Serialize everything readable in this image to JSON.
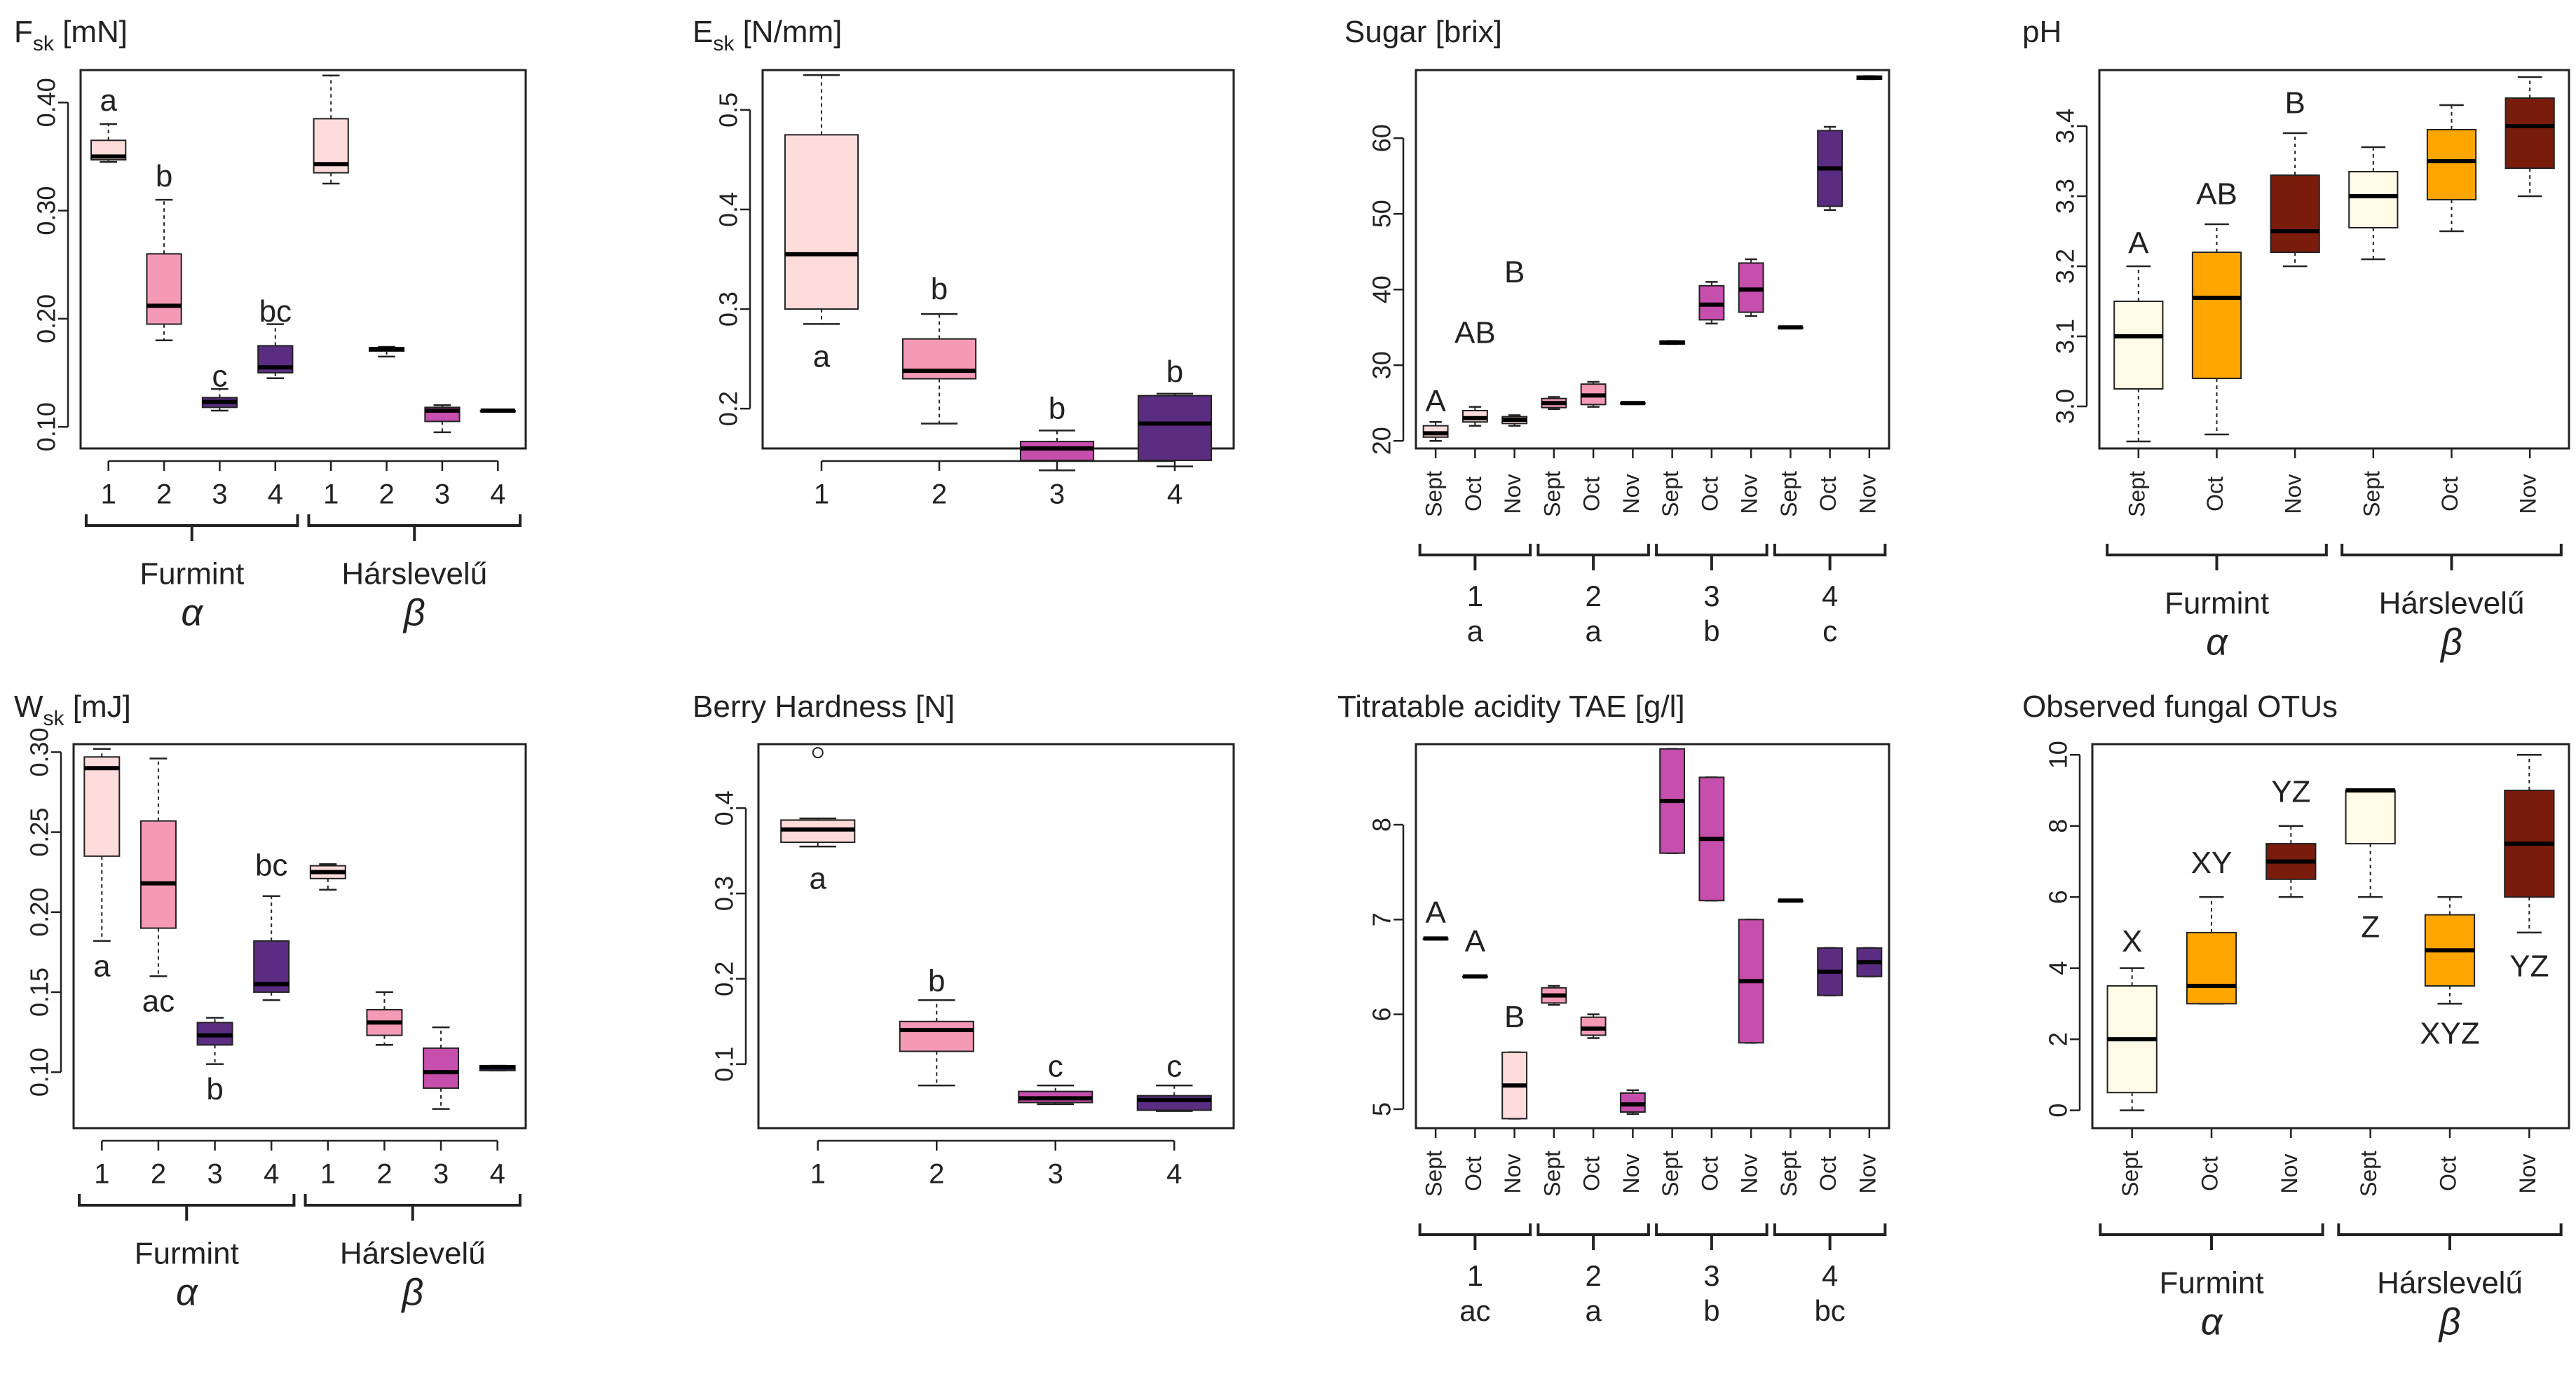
{
  "colors": {
    "pale": "#fffbe6",
    "lightpink": "#ffdcdc",
    "pink": "#f59ab6",
    "magenta": "#c64eac",
    "purple": "#5a2d82",
    "orange": "#ffa500",
    "brown": "#7a1c0c",
    "ink": "#222222"
  },
  "group_labels": {
    "furmint": "Furmint",
    "harslevelu": "Hárslevelű",
    "alpha": "α",
    "beta": "β"
  },
  "chart_data": [
    {
      "id": "fsk",
      "type": "boxplot",
      "title": "F",
      "title_sub": "sk",
      "title_unit": " [mN]",
      "ylim": [
        0.08,
        0.43
      ],
      "yticks": [
        0.1,
        0.2,
        0.3,
        0.4
      ],
      "ytick_labels": [
        "0.10",
        "0.20",
        "0.30",
        "0.40"
      ],
      "categories": [
        "1",
        "2",
        "3",
        "4",
        "1",
        "2",
        "3",
        "4"
      ],
      "boxes": [
        {
          "min": 0.345,
          "q1": 0.347,
          "median": 0.35,
          "q3": 0.365,
          "max": 0.38,
          "color": "lightpink"
        },
        {
          "min": 0.18,
          "q1": 0.195,
          "median": 0.212,
          "q3": 0.26,
          "max": 0.31,
          "color": "pink"
        },
        {
          "min": 0.115,
          "q1": 0.118,
          "median": 0.123,
          "q3": 0.127,
          "max": 0.135,
          "color": "purple"
        },
        {
          "min": 0.145,
          "q1": 0.15,
          "median": 0.155,
          "q3": 0.175,
          "max": 0.195,
          "color": "purple"
        },
        {
          "min": 0.325,
          "q1": 0.335,
          "median": 0.343,
          "q3": 0.385,
          "max": 0.425,
          "color": "lightpink"
        },
        {
          "min": 0.165,
          "q1": 0.17,
          "median": 0.172,
          "q3": 0.173,
          "max": 0.174,
          "color": "pink"
        },
        {
          "min": 0.095,
          "q1": 0.105,
          "median": 0.115,
          "q3": 0.118,
          "max": 0.12,
          "color": "magenta"
        },
        {
          "min": 0.114,
          "q1": 0.114,
          "median": 0.115,
          "q3": 0.115,
          "max": 0.116,
          "color": "purple"
        }
      ],
      "annotations": [
        {
          "text": "a",
          "x": 1,
          "y": 0.4
        },
        {
          "text": "b",
          "x": 2,
          "y": 0.33
        },
        {
          "text": "c",
          "x": 3,
          "y": 0.145
        },
        {
          "text": "bc",
          "x": 4,
          "y": 0.205
        }
      ],
      "groups": [
        {
          "label": "Furmint",
          "greek": "α",
          "from": 1,
          "to": 4
        },
        {
          "label": "Hárslevelű",
          "greek": "β",
          "from": 5,
          "to": 8
        }
      ]
    },
    {
      "id": "esk",
      "type": "boxplot",
      "title": "E",
      "title_sub": "sk",
      "title_unit": " [N/mm]",
      "ylim": [
        0.16,
        0.54
      ],
      "yticks": [
        0.2,
        0.3,
        0.4,
        0.5
      ],
      "ytick_labels": [
        "0.2",
        "0.3",
        "0.4",
        "0.5"
      ],
      "categories": [
        "1",
        "2",
        "3",
        "4"
      ],
      "boxes": [
        {
          "min": 0.285,
          "q1": 0.3,
          "median": 0.355,
          "q3": 0.475,
          "max": 0.535,
          "color": "lightpink"
        },
        {
          "min": 0.185,
          "q1": 0.23,
          "median": 0.238,
          "q3": 0.27,
          "max": 0.295,
          "color": "pink"
        },
        {
          "min": 0.138,
          "q1": 0.148,
          "median": 0.16,
          "q3": 0.167,
          "max": 0.178,
          "color": "magenta"
        },
        {
          "min": 0.142,
          "q1": 0.148,
          "median": 0.185,
          "q3": 0.213,
          "max": 0.215,
          "color": "purple"
        }
      ],
      "annotations": [
        {
          "text": "a",
          "x": 1,
          "y": 0.25
        },
        {
          "text": "b",
          "x": 2,
          "y": 0.318
        },
        {
          "text": "b",
          "x": 3,
          "y": 0.198
        },
        {
          "text": "b",
          "x": 4,
          "y": 0.235
        }
      ]
    },
    {
      "id": "sugar",
      "type": "boxplot",
      "title": "Sugar [brix]",
      "ylim": [
        19,
        69
      ],
      "yticks": [
        20,
        30,
        40,
        50,
        60
      ],
      "ytick_labels": [
        "20",
        "30",
        "40",
        "50",
        "60"
      ],
      "categories": [
        "Sept",
        "Oct",
        "Nov",
        "Sept",
        "Oct",
        "Nov",
        "Sept",
        "Oct",
        "Nov",
        "Sept",
        "Oct",
        "Nov"
      ],
      "boxes": [
        {
          "min": 20,
          "q1": 20.5,
          "median": 21,
          "q3": 22,
          "max": 22.5,
          "color": "lightpink"
        },
        {
          "min": 22,
          "q1": 22.5,
          "median": 23,
          "q3": 24,
          "max": 24.5,
          "color": "lightpink"
        },
        {
          "min": 22,
          "q1": 22.3,
          "median": 22.8,
          "q3": 23.2,
          "max": 23.4,
          "color": "lightpink"
        },
        {
          "min": 24.2,
          "q1": 24.4,
          "median": 25,
          "q3": 25.6,
          "max": 25.8,
          "color": "pink"
        },
        {
          "min": 24.5,
          "q1": 24.8,
          "median": 26,
          "q3": 27.5,
          "max": 27.8,
          "color": "pink"
        },
        {
          "min": 25,
          "q1": 25,
          "median": 25,
          "q3": 25,
          "max": 25,
          "color": "pink"
        },
        {
          "min": 32.8,
          "q1": 32.8,
          "median": 33,
          "q3": 33.2,
          "max": 33.2,
          "color": "magenta"
        },
        {
          "min": 35.5,
          "q1": 36,
          "median": 38,
          "q3": 40.5,
          "max": 41,
          "color": "magenta"
        },
        {
          "min": 36.5,
          "q1": 37,
          "median": 40,
          "q3": 43.5,
          "max": 44,
          "color": "magenta"
        },
        {
          "min": 35,
          "q1": 35,
          "median": 35,
          "q3": 35,
          "max": 35,
          "color": "purple"
        },
        {
          "min": 50.5,
          "q1": 51,
          "median": 56,
          "q3": 61,
          "max": 61.5,
          "color": "purple"
        },
        {
          "min": 67.8,
          "q1": 67.8,
          "median": 68,
          "q3": 68.2,
          "max": 68.2,
          "color": "purple"
        }
      ],
      "annotations": [
        {
          "text": "A",
          "x": 1,
          "y": 25
        },
        {
          "text": "AB",
          "x": 2,
          "y": 34
        },
        {
          "text": "B",
          "x": 3,
          "y": 42
        }
      ],
      "groups": [
        {
          "label": "1",
          "sub": "a",
          "from": 1,
          "to": 3
        },
        {
          "label": "2",
          "sub": "a",
          "from": 4,
          "to": 6
        },
        {
          "label": "3",
          "sub": "b",
          "from": 7,
          "to": 9
        },
        {
          "label": "4",
          "sub": "c",
          "from": 10,
          "to": 12
        }
      ]
    },
    {
      "id": "ph",
      "type": "boxplot",
      "title": "pH",
      "ylim": [
        2.94,
        3.48
      ],
      "yticks": [
        3.0,
        3.1,
        3.2,
        3.3,
        3.4
      ],
      "ytick_labels": [
        "3.0",
        "3.1",
        "3.2",
        "3.3",
        "3.4"
      ],
      "categories": [
        "Sept",
        "Oct",
        "Nov",
        "Sept",
        "Oct",
        "Nov"
      ],
      "boxes": [
        {
          "min": 2.95,
          "q1": 3.025,
          "median": 3.1,
          "q3": 3.15,
          "max": 3.2,
          "color": "pale"
        },
        {
          "min": 2.96,
          "q1": 3.04,
          "median": 3.155,
          "q3": 3.22,
          "max": 3.26,
          "color": "orange"
        },
        {
          "min": 3.2,
          "q1": 3.22,
          "median": 3.25,
          "q3": 3.33,
          "max": 3.39,
          "color": "brown"
        },
        {
          "min": 3.21,
          "q1": 3.255,
          "median": 3.3,
          "q3": 3.335,
          "max": 3.37,
          "color": "pale"
        },
        {
          "min": 3.25,
          "q1": 3.295,
          "median": 3.35,
          "q3": 3.395,
          "max": 3.43,
          "color": "orange"
        },
        {
          "min": 3.3,
          "q1": 3.34,
          "median": 3.4,
          "q3": 3.44,
          "max": 3.47,
          "color": "brown"
        }
      ],
      "annotations": [
        {
          "text": "A",
          "x": 1,
          "y": 3.23
        },
        {
          "text": "AB",
          "x": 2,
          "y": 3.3
        },
        {
          "text": "B",
          "x": 3,
          "y": 3.43
        }
      ],
      "groups": [
        {
          "label": "Furmint",
          "greek": "α",
          "from": 1,
          "to": 3
        },
        {
          "label": "Hárslevelű",
          "greek": "β",
          "from": 4,
          "to": 6
        }
      ]
    },
    {
      "id": "wsk",
      "type": "boxplot",
      "title": "W",
      "title_sub": "sk",
      "title_unit": " [mJ]",
      "ylim": [
        0.065,
        0.305
      ],
      "yticks": [
        0.1,
        0.15,
        0.2,
        0.25,
        0.3
      ],
      "ytick_labels": [
        "0.10",
        "0.15",
        "0.20",
        "0.25",
        "0.30"
      ],
      "categories": [
        "1",
        "2",
        "3",
        "4",
        "1",
        "2",
        "3",
        "4"
      ],
      "boxes": [
        {
          "min": 0.182,
          "q1": 0.235,
          "median": 0.29,
          "q3": 0.297,
          "max": 0.302,
          "color": "lightpink"
        },
        {
          "min": 0.16,
          "q1": 0.19,
          "median": 0.218,
          "q3": 0.257,
          "max": 0.296,
          "color": "pink"
        },
        {
          "min": 0.105,
          "q1": 0.117,
          "median": 0.123,
          "q3": 0.131,
          "max": 0.134,
          "color": "purple"
        },
        {
          "min": 0.145,
          "q1": 0.15,
          "median": 0.155,
          "q3": 0.182,
          "max": 0.21,
          "color": "purple"
        },
        {
          "min": 0.214,
          "q1": 0.221,
          "median": 0.225,
          "q3": 0.229,
          "max": 0.23,
          "color": "lightpink"
        },
        {
          "min": 0.117,
          "q1": 0.123,
          "median": 0.131,
          "q3": 0.139,
          "max": 0.15,
          "color": "pink"
        },
        {
          "min": 0.077,
          "q1": 0.09,
          "median": 0.1,
          "q3": 0.115,
          "max": 0.128,
          "color": "magenta"
        },
        {
          "min": 0.101,
          "q1": 0.101,
          "median": 0.103,
          "q3": 0.104,
          "max": 0.104,
          "color": "purple"
        }
      ],
      "annotations": [
        {
          "text": "a",
          "x": 1,
          "y": 0.165
        },
        {
          "text": "ac",
          "x": 2,
          "y": 0.143
        },
        {
          "text": "b",
          "x": 3,
          "y": 0.088
        },
        {
          "text": "bc",
          "x": 4,
          "y": 0.228
        }
      ],
      "groups": [
        {
          "label": "Furmint",
          "greek": "α",
          "from": 1,
          "to": 4
        },
        {
          "label": "Hárslevelű",
          "greek": "β",
          "from": 5,
          "to": 8
        }
      ]
    },
    {
      "id": "hardness",
      "type": "boxplot",
      "title": "Berry Hardness [N]",
      "ylim": [
        0.025,
        0.475
      ],
      "yticks": [
        0.1,
        0.2,
        0.3,
        0.4
      ],
      "ytick_labels": [
        "0.1",
        "0.2",
        "0.3",
        "0.4"
      ],
      "categories": [
        "1",
        "2",
        "3",
        "4"
      ],
      "boxes": [
        {
          "min": 0.355,
          "q1": 0.36,
          "median": 0.375,
          "q3": 0.386,
          "max": 0.388,
          "outliers": [
            0.465
          ],
          "color": "lightpink"
        },
        {
          "min": 0.075,
          "q1": 0.115,
          "median": 0.14,
          "q3": 0.15,
          "max": 0.175,
          "color": "pink"
        },
        {
          "min": 0.053,
          "q1": 0.055,
          "median": 0.06,
          "q3": 0.068,
          "max": 0.075,
          "color": "magenta"
        },
        {
          "min": 0.045,
          "q1": 0.046,
          "median": 0.058,
          "q3": 0.063,
          "max": 0.075,
          "color": "purple"
        }
      ],
      "annotations": [
        {
          "text": "a",
          "x": 1,
          "y": 0.315
        },
        {
          "text": "b",
          "x": 2,
          "y": 0.195
        },
        {
          "text": "c",
          "x": 3,
          "y": 0.095
        },
        {
          "text": "c",
          "x": 4,
          "y": 0.095
        }
      ]
    },
    {
      "id": "tae",
      "type": "boxplot",
      "title": "Titratable acidity TAE [g/l]",
      "ylim": [
        4.8,
        8.85
      ],
      "yticks": [
        5,
        6,
        7,
        8
      ],
      "ytick_labels": [
        "5",
        "6",
        "7",
        "8"
      ],
      "categories": [
        "Sept",
        "Oct",
        "Nov",
        "Sept",
        "Oct",
        "Nov",
        "Sept",
        "Oct",
        "Nov",
        "Sept",
        "Oct",
        "Nov"
      ],
      "boxes": [
        {
          "min": 6.8,
          "q1": 6.8,
          "median": 6.8,
          "q3": 6.8,
          "max": 6.8,
          "color": "lightpink"
        },
        {
          "min": 6.4,
          "q1": 6.4,
          "median": 6.4,
          "q3": 6.4,
          "max": 6.4,
          "color": "lightpink"
        },
        {
          "min": 4.9,
          "q1": 4.9,
          "median": 5.25,
          "q3": 5.6,
          "max": 5.6,
          "color": "lightpink"
        },
        {
          "min": 6.1,
          "q1": 6.12,
          "median": 6.2,
          "q3": 6.28,
          "max": 6.3,
          "color": "pink"
        },
        {
          "min": 5.75,
          "q1": 5.78,
          "median": 5.85,
          "q3": 5.97,
          "max": 6.0,
          "color": "pink"
        },
        {
          "min": 4.95,
          "q1": 4.97,
          "median": 5.05,
          "q3": 5.17,
          "max": 5.2,
          "color": "magenta"
        },
        {
          "min": 7.7,
          "q1": 7.7,
          "median": 8.25,
          "q3": 8.8,
          "max": 8.8,
          "color": "magenta"
        },
        {
          "min": 7.2,
          "q1": 7.2,
          "median": 7.85,
          "q3": 8.5,
          "max": 8.5,
          "color": "magenta"
        },
        {
          "min": 5.7,
          "q1": 5.7,
          "median": 6.35,
          "q3": 7.0,
          "max": 7.0,
          "color": "magenta"
        },
        {
          "min": 7.2,
          "q1": 7.2,
          "median": 7.2,
          "q3": 7.2,
          "max": 7.2,
          "color": "purple"
        },
        {
          "min": 6.2,
          "q1": 6.2,
          "median": 6.45,
          "q3": 6.7,
          "max": 6.7,
          "color": "purple"
        },
        {
          "min": 6.4,
          "q1": 6.4,
          "median": 6.55,
          "q3": 6.7,
          "max": 6.7,
          "color": "purple"
        }
      ],
      "annotations": [
        {
          "text": "A",
          "x": 1,
          "y": 7.05
        },
        {
          "text": "A",
          "x": 2,
          "y": 6.75
        },
        {
          "text": "B",
          "x": 3,
          "y": 5.95
        }
      ],
      "groups": [
        {
          "label": "1",
          "sub": "ac",
          "from": 1,
          "to": 3
        },
        {
          "label": "2",
          "sub": "a",
          "from": 4,
          "to": 6
        },
        {
          "label": "3",
          "sub": "b",
          "from": 7,
          "to": 9
        },
        {
          "label": "4",
          "sub": "bc",
          "from": 10,
          "to": 12
        }
      ]
    },
    {
      "id": "otus",
      "type": "boxplot",
      "title": "Observed fungal OTUs",
      "ylim": [
        -0.5,
        10.3
      ],
      "yticks": [
        0,
        2,
        4,
        6,
        8,
        10
      ],
      "ytick_labels": [
        "0",
        "2",
        "4",
        "6",
        "8",
        "10"
      ],
      "categories": [
        "Sept",
        "Oct",
        "Nov",
        "Sept",
        "Oct",
        "Nov"
      ],
      "boxes": [
        {
          "min": 0,
          "q1": 0.5,
          "median": 2,
          "q3": 3.5,
          "max": 4,
          "color": "pale"
        },
        {
          "min": 3,
          "q1": 3,
          "median": 3.5,
          "q3": 5,
          "max": 6,
          "color": "orange"
        },
        {
          "min": 6,
          "q1": 6.5,
          "median": 7,
          "q3": 7.5,
          "max": 8,
          "color": "brown"
        },
        {
          "min": 6,
          "q1": 7.5,
          "median": 9,
          "q3": 9,
          "max": 9,
          "color": "pale"
        },
        {
          "min": 3,
          "q1": 3.5,
          "median": 4.5,
          "q3": 5.5,
          "max": 6,
          "color": "orange"
        },
        {
          "min": 5,
          "q1": 6,
          "median": 7.5,
          "q3": 9,
          "max": 10,
          "color": "brown"
        }
      ],
      "annotations": [
        {
          "text": "X",
          "x": 1,
          "y": 4.7
        },
        {
          "text": "XY",
          "x": 2,
          "y": 6.9
        },
        {
          "text": "YZ",
          "x": 3,
          "y": 8.9
        },
        {
          "text": "Z",
          "x": 4,
          "y": 5.1
        },
        {
          "text": "XYZ",
          "x": 5,
          "y": 2.1
        },
        {
          "text": "YZ",
          "x": 6,
          "y": 4.0
        }
      ],
      "groups": [
        {
          "label": "Furmint",
          "greek": "α",
          "from": 1,
          "to": 3
        },
        {
          "label": "Hárslevelű",
          "greek": "β",
          "from": 4,
          "to": 6
        }
      ]
    }
  ]
}
